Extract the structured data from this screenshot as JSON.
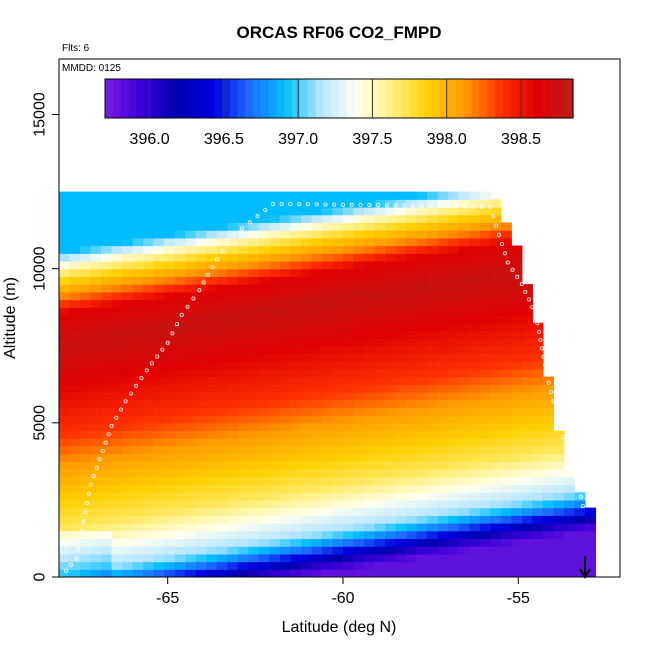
{
  "chart_data": {
    "type": "heatmap",
    "title": "ORCAS RF06 CO2_FMPD",
    "subtitle_flights": "Flts: 6",
    "subtitle_date": "MMDD: 0125",
    "xlabel": "Latitude (deg N)",
    "ylabel": "Altitude (m)",
    "xlim": [
      -68.1,
      -52.1
    ],
    "ylim": [
      0,
      16800
    ],
    "x_ticks": [
      -65,
      -60,
      -55
    ],
    "x_tick_labels": [
      "-65",
      "-60",
      "-55"
    ],
    "y_ticks": [
      0,
      5000,
      10000,
      15000
    ],
    "y_tick_labels": [
      "0",
      "5000",
      "10000",
      "15000"
    ],
    "colorbar": {
      "range": [
        395.7,
        398.85
      ],
      "ticks": [
        396.0,
        396.5,
        397.0,
        397.5,
        398.0,
        398.5
      ],
      "tick_labels": [
        "396.0",
        "396.5",
        "397.0",
        "397.5",
        "398.0",
        "398.5"
      ],
      "colors": [
        "#7a1fe0",
        "#3a00d8",
        "#0000b0",
        "#0000e0",
        "#1e6bff",
        "#00c0ff",
        "#b8e6ff",
        "#fffff0",
        "#fff080",
        "#ffd000",
        "#ff9a00",
        "#ff3000",
        "#e00000",
        "#b82020"
      ]
    },
    "altitude_profile": [
      {
        "alt": 200,
        "co2": 395.8
      },
      {
        "alt": 500,
        "co2": 396.0
      },
      {
        "alt": 1000,
        "co2": 396.6
      },
      {
        "alt": 1500,
        "co2": 397.1
      },
      {
        "alt": 2000,
        "co2": 397.3
      },
      {
        "alt": 3000,
        "co2": 397.7
      },
      {
        "alt": 4000,
        "co2": 397.9
      },
      {
        "alt": 5000,
        "co2": 398.1
      },
      {
        "alt": 6000,
        "co2": 398.35
      },
      {
        "alt": 7000,
        "co2": 398.5
      },
      {
        "alt": 8000,
        "co2": 398.65
      },
      {
        "alt": 9000,
        "co2": 398.75
      },
      {
        "alt": 10000,
        "co2": 398.6
      },
      {
        "alt": 10500,
        "co2": 398.2
      },
      {
        "alt": 11000,
        "co2": 397.9
      },
      {
        "alt": 11500,
        "co2": 397.5
      },
      {
        "alt": 12000,
        "co2": 396.9
      }
    ],
    "coverage_edge": [
      {
        "lat": -53.1,
        "alt_top": 2200
      },
      {
        "lat": -53.7,
        "alt_top": 3800
      },
      {
        "lat": -54.0,
        "alt_top": 5400
      },
      {
        "lat": -54.3,
        "alt_top": 7200
      },
      {
        "lat": -54.6,
        "alt_top": 8800
      },
      {
        "lat": -55.0,
        "alt_top": 10600
      },
      {
        "lat": -55.7,
        "alt_top": 12200
      }
    ],
    "flight_track": [
      {
        "lat": -67.9,
        "alt": 200
      },
      {
        "lat": -67.6,
        "alt": 600
      },
      {
        "lat": -67.2,
        "alt": 3000
      },
      {
        "lat": -66.6,
        "alt": 4900
      },
      {
        "lat": -66.2,
        "alt": 5700
      },
      {
        "lat": -65.6,
        "alt": 6700
      },
      {
        "lat": -65.0,
        "alt": 7600
      },
      {
        "lat": -64.6,
        "alt": 8500
      },
      {
        "lat": -64.1,
        "alt": 9300
      },
      {
        "lat": -63.6,
        "alt": 10300
      },
      {
        "lat": -63.1,
        "alt": 11100
      },
      {
        "lat": -62.0,
        "alt": 12100
      },
      {
        "lat": -58.0,
        "alt": 12050
      },
      {
        "lat": -55.8,
        "alt": 12000
      },
      {
        "lat": -55.3,
        "alt": 10200
      },
      {
        "lat": -54.9,
        "alt": 9500
      },
      {
        "lat": -54.5,
        "alt": 8500
      },
      {
        "lat": -54.2,
        "alt": 6600
      },
      {
        "lat": -53.8,
        "alt": 4800
      },
      {
        "lat": -53.4,
        "alt": 3500
      },
      {
        "lat": -53.1,
        "alt": 2000
      }
    ],
    "marker_arrow_lat": -53.1
  }
}
